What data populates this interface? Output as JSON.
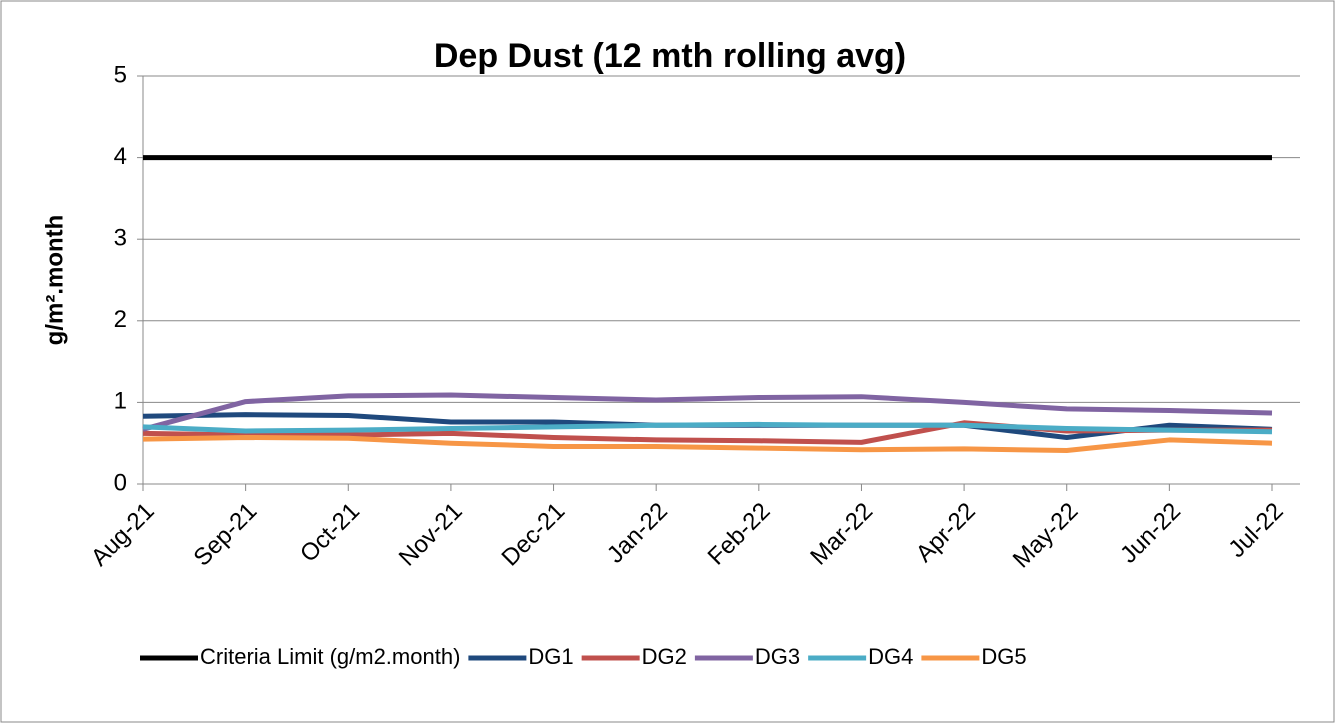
{
  "chart_data": {
    "type": "line",
    "title": "Dep Dust (12 mth rolling avg)",
    "y_label": "g/m².month",
    "categories": [
      "Aug-21",
      "Sep-21",
      "Oct-21",
      "Nov-21",
      "Dec-21",
      "Jan-22",
      "Feb-22",
      "Mar-22",
      "Apr-22",
      "May-22",
      "Jun-22",
      "Jul-22"
    ],
    "series": [
      {
        "name": "Criteria Limit (g/m2.month)",
        "color": "#000000",
        "values": [
          4,
          4,
          4,
          4,
          4,
          4,
          4,
          4,
          4,
          4,
          4,
          4
        ]
      },
      {
        "name": "DG1",
        "color": "#1f497d",
        "values": [
          0.83,
          0.85,
          0.84,
          0.76,
          0.76,
          0.72,
          0.72,
          0.72,
          0.72,
          0.57,
          0.72,
          0.67
        ]
      },
      {
        "name": "DG2",
        "color": "#c0504d",
        "values": [
          0.62,
          0.6,
          0.6,
          0.62,
          0.57,
          0.54,
          0.53,
          0.51,
          0.75,
          0.65,
          0.66,
          0.66
        ]
      },
      {
        "name": "DG3",
        "color": "#8064a2",
        "values": [
          0.67,
          1.01,
          1.08,
          1.09,
          1.06,
          1.03,
          1.06,
          1.07,
          1.0,
          0.92,
          0.9,
          0.87
        ]
      },
      {
        "name": "DG4",
        "color": "#4bacc6",
        "values": [
          0.7,
          0.65,
          0.66,
          0.68,
          0.7,
          0.72,
          0.73,
          0.72,
          0.72,
          0.68,
          0.66,
          0.64
        ]
      },
      {
        "name": "DG5",
        "color": "#f79646",
        "values": [
          0.55,
          0.57,
          0.56,
          0.5,
          0.46,
          0.46,
          0.44,
          0.42,
          0.43,
          0.41,
          0.54,
          0.5
        ]
      }
    ],
    "ylim": [
      0,
      5
    ],
    "yticks": [
      0,
      1,
      2,
      3,
      4,
      5
    ],
    "grid": true,
    "legend": "bottom"
  }
}
